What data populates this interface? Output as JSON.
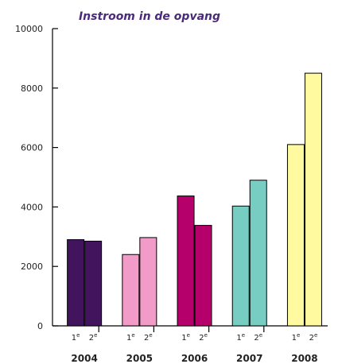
{
  "chart_data": {
    "type": "bar",
    "title": "Instroom in de opvang",
    "xlabel": "",
    "ylabel": "",
    "ylim": [
      0,
      10000
    ],
    "yticks": [
      0,
      2000,
      4000,
      6000,
      8000,
      10000
    ],
    "ytick_labels": [
      "0",
      "2000",
      "4000",
      "6000",
      "8000",
      "10000"
    ],
    "categories": [
      "2004",
      "2005",
      "2006",
      "2007",
      "2008"
    ],
    "sub_categories": [
      "1e",
      "2e"
    ],
    "sub_labels": [
      {
        "base": "1",
        "sup": "e"
      },
      {
        "base": "2",
        "sup": "e"
      }
    ],
    "values": [
      [
        2900,
        2850
      ],
      [
        2400,
        2970
      ],
      [
        4370,
        3380
      ],
      [
        4030,
        4900
      ],
      [
        6100,
        8500
      ]
    ],
    "colors": [
      "#43145e",
      "#f29ac8",
      "#b5006b",
      "#78cdc3",
      "#fff9a0"
    ],
    "grid": false,
    "legend": "none"
  }
}
